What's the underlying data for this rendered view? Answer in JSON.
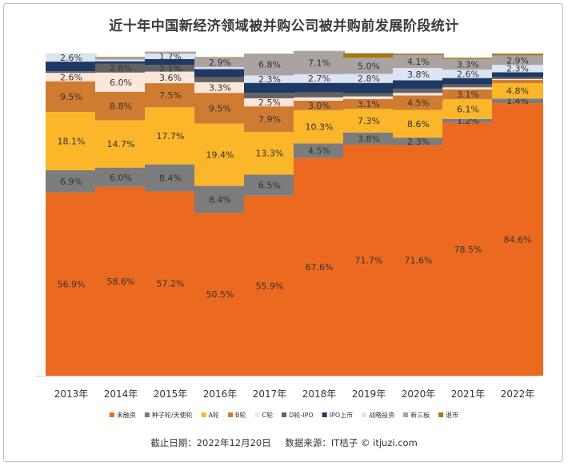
{
  "chart_data": {
    "type": "bar",
    "stacked": true,
    "title": "近十年中国新经济领域被并购公司被并购前发展阶段统计",
    "categories": [
      "2013年",
      "2014年",
      "2015年",
      "2016年",
      "2017年",
      "2018年",
      "2019年",
      "2020年",
      "2021年",
      "2022年"
    ],
    "ylim": [
      0,
      100
    ],
    "series": [
      {
        "name": "未融资",
        "color": "#ec6a1f",
        "values": [
          56.9,
          58.6,
          57.2,
          50.5,
          55.9,
          67.6,
          71.7,
          71.6,
          78.5,
          84.6
        ],
        "labels": [
          "56.9%",
          "58.6%",
          "57.2%",
          "50.5%",
          "55.9%",
          "67.6%",
          "71.7%",
          "71.6%",
          "78.5%",
          "84.6%"
        ]
      },
      {
        "name": "种子轮/天使轮",
        "color": "#7c7c7c",
        "values": [
          6.9,
          6.0,
          8.4,
          8.4,
          6.5,
          4.5,
          3.8,
          2.3,
          1.2,
          1.4
        ],
        "labels": [
          "6.9%",
          "6.0%",
          "8.4%",
          "8.4%",
          "6.5%",
          "4.5%",
          "3.8%",
          "2.3%",
          "1.2%",
          "1.4%"
        ]
      },
      {
        "name": "A轮",
        "color": "#fbb629",
        "values": [
          18.1,
          14.7,
          17.7,
          19.4,
          13.3,
          10.3,
          7.3,
          8.6,
          6.1,
          4.8
        ],
        "labels": [
          "18.1%",
          "14.7%",
          "17.7%",
          "19.4%",
          "13.3%",
          "10.3%",
          "7.3%",
          "8.6%",
          "6.1%",
          "4.8%"
        ]
      },
      {
        "name": "B轮",
        "color": "#cf7b32",
        "values": [
          9.5,
          8.8,
          7.5,
          9.5,
          7.9,
          3.0,
          3.1,
          4.5,
          3.1,
          1.0
        ],
        "labels": [
          "9.5%",
          "8.8%",
          "7.5%",
          "9.5%",
          "7.9%",
          "3.0%",
          "3.1%",
          "4.5%",
          "3.1%",
          ""
        ]
      },
      {
        "name": "C轮",
        "color": "#fbe6d9",
        "values": [
          2.6,
          6.0,
          3.6,
          3.3,
          2.5,
          1.0,
          0.8,
          0.8,
          0.6,
          0.3
        ],
        "labels": [
          "2.6%",
          "6.0%",
          "3.6%",
          "3.3%",
          "2.5%",
          "",
          "",
          "",
          "",
          ""
        ]
      },
      {
        "name": "D轮-IPO",
        "color": "#636363",
        "values": [
          0.5,
          2.8,
          2.1,
          1.6,
          1.7,
          1.5,
          1.0,
          1.3,
          0.9,
          0.6
        ],
        "labels": [
          "",
          "2.8%",
          "2.1%",
          "",
          "",
          "",
          "",
          "",
          "",
          ""
        ]
      },
      {
        "name": "IPO上市",
        "color": "#203864",
        "values": [
          3.0,
          0.7,
          1.8,
          2.5,
          3.1,
          3.0,
          3.2,
          2.6,
          2.0,
          1.5
        ],
        "labels": [
          "",
          "",
          "",
          "",
          "",
          "",
          "",
          "",
          "",
          ""
        ]
      },
      {
        "name": "战略投资",
        "color": "#dbe4f2",
        "values": [
          2.6,
          0.5,
          1.7,
          0.6,
          2.3,
          2.7,
          2.8,
          3.8,
          2.6,
          2.3
        ],
        "labels": [
          "2.6%",
          "",
          "1.7%",
          "",
          "2.3%",
          "2.7%",
          "2.8%",
          "3.8%",
          "2.6%",
          "2.3%"
        ]
      },
      {
        "name": "新三板",
        "color": "#aba2a2",
        "values": [
          0.0,
          0.8,
          0.6,
          2.9,
          6.8,
          7.1,
          5.0,
          4.1,
          3.3,
          2.9
        ],
        "labels": [
          "",
          "",
          "",
          "2.9%",
          "6.8%",
          "7.1%",
          "5.0%",
          "4.1%",
          "3.3%",
          "2.9%"
        ]
      },
      {
        "name": "退市",
        "color": "#a07a13",
        "values": [
          0.0,
          0.1,
          0.0,
          0.2,
          0.0,
          0.1,
          1.4,
          0.4,
          0.4,
          0.6
        ],
        "labels": [
          "",
          "",
          "",
          "",
          "",
          "",
          "",
          "",
          "",
          ""
        ]
      }
    ],
    "footer": {
      "date": "截止日期：2022年12月20日",
      "source": "数据来源：IT桔子 © itjuzi.com"
    }
  }
}
